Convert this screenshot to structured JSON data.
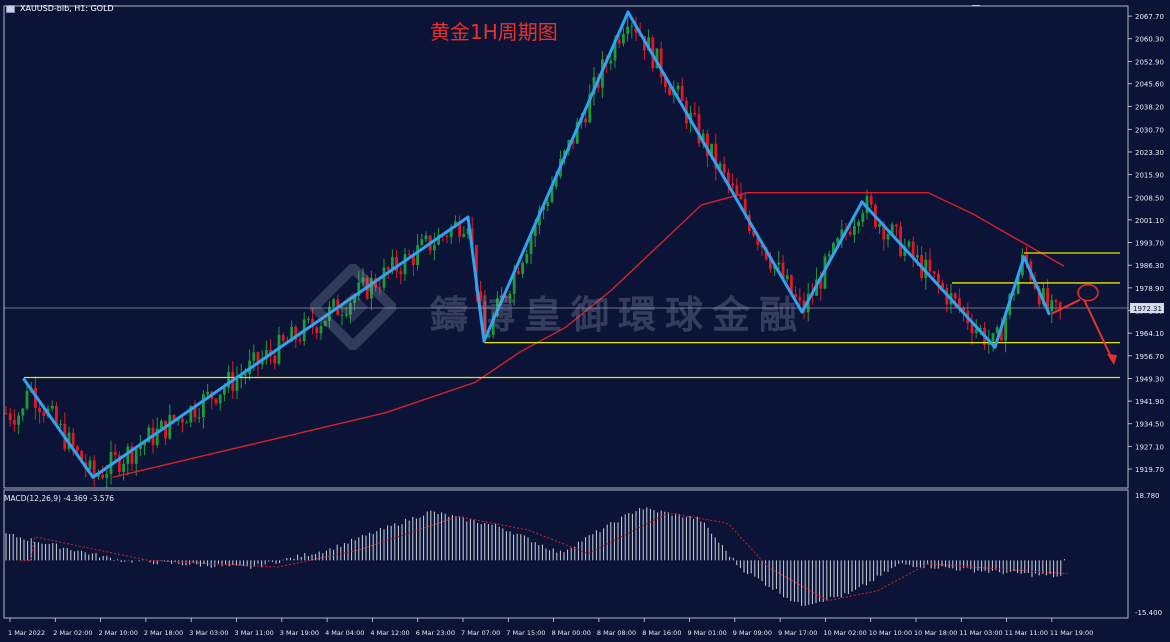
{
  "window": {
    "symbol_label": "XAUUSD-bib, H1:  GOLD",
    "chart_title": "黄金1H周期图",
    "watermark_text": "鑄博皇御環球金融"
  },
  "price_axis": {
    "ticks": [
      "2067.70",
      "2060.30",
      "2052.90",
      "2045.60",
      "2038.20",
      "2030.70",
      "2023.30",
      "2015.90",
      "2008.50",
      "2001.10",
      "1993.70",
      "1986.30",
      "1978.90",
      "1971.55",
      "1964.10",
      "1956.70",
      "1949.30",
      "1941.90",
      "1934.50",
      "1927.10",
      "1919.70"
    ],
    "current_price": "1972.31",
    "range": [
      1913.5,
      2071.0
    ]
  },
  "time_axis": {
    "labels": [
      "1 Mar 2022",
      "2 Mar 02:00",
      "2 Mar 10:00",
      "2 Mar 18:00",
      "3 Mar 03:00",
      "3 Mar 11:00",
      "3 Mar 19:00",
      "4 Mar 04:00",
      "4 Mar 12:00",
      "6 Mar 23:00",
      "7 Mar 07:00",
      "7 Mar 15:00",
      "8 Mar 00:00",
      "8 Mar 08:00",
      "8 Mar 16:00",
      "9 Mar 01:00",
      "9 Mar 09:00",
      "9 Mar 17:00",
      "10 Mar 02:00",
      "10 Mar 10:00",
      "10 Mar 18:00",
      "11 Mar 03:00",
      "11 Mar 11:00",
      "11 Mar 19:00"
    ]
  },
  "macd": {
    "label": "MACD(12,26,9) -4.369 -3.576",
    "axis_top": "18.780",
    "axis_bottom": "-15.400",
    "range": [
      -15.4,
      18.78
    ]
  },
  "chart_data": {
    "type": "candlestick",
    "symbol": "XAUUSD",
    "timeframe": "H1",
    "pivots": [
      {
        "label": "1 Mar 2022",
        "price": 1949.0
      },
      {
        "label": "2 Mar 10:00",
        "price": 1917.0
      },
      {
        "label": "7 Mar 07:00",
        "price": 2002.0
      },
      {
        "label": "7 Mar 07:00",
        "price": 1961.5
      },
      {
        "label": "8 Mar 08:00",
        "price": 2069.0
      },
      {
        "label": "9 Mar 17:00",
        "price": 1971.0
      },
      {
        "label": "10 Mar 10:00",
        "price": 2007.0
      },
      {
        "label": "11 Mar 03:00",
        "price": 1959.5
      },
      {
        "label": "11 Mar 11:00",
        "price": 1989.0
      },
      {
        "label": "11 Mar 19:00",
        "price": 1970.5
      }
    ],
    "support_resistance": [
      {
        "price": 1949.6,
        "from": "1 Mar 2022"
      },
      {
        "price": 1961.0,
        "from": "7 Mar 07:00"
      },
      {
        "price": 1980.5,
        "from": "11 Mar 03:00"
      },
      {
        "price": 1990.3,
        "from": "11 Mar 11:00"
      }
    ],
    "moving_average": [
      {
        "x": "2 Mar 10:00",
        "y": 1917
      },
      {
        "x": "3 Mar 03:00",
        "y": 1924
      },
      {
        "x": "3 Mar 19:00",
        "y": 1931
      },
      {
        "x": "4 Mar 12:00",
        "y": 1938
      },
      {
        "x": "7 Mar 07:00",
        "y": 1948
      },
      {
        "x": "7 Mar 15:00",
        "y": 1958
      },
      {
        "x": "8 Mar 00:00",
        "y": 1966
      },
      {
        "x": "8 Mar 08:00",
        "y": 1978
      },
      {
        "x": "8 Mar 16:00",
        "y": 1992
      },
      {
        "x": "9 Mar 01:00",
        "y": 2006
      },
      {
        "x": "9 Mar 09:00",
        "y": 2010
      },
      {
        "x": "10 Mar 02:00",
        "y": 2010
      },
      {
        "x": "10 Mar 18:00",
        "y": 2010
      },
      {
        "x": "11 Mar 03:00",
        "y": 2003
      },
      {
        "x": "11 Mar 19:00",
        "y": 1986
      }
    ],
    "forecast": {
      "from": 1970.5,
      "up_to": 1977.0,
      "down_to": 1955.0
    },
    "colors": {
      "bull": "#1e9a3a",
      "bear": "#e01a24",
      "zigzag": "#2fa3f0",
      "level": "#e6e600",
      "ma": "#d8202a",
      "background": "#0b1436",
      "forecast": "#e8322b"
    }
  }
}
